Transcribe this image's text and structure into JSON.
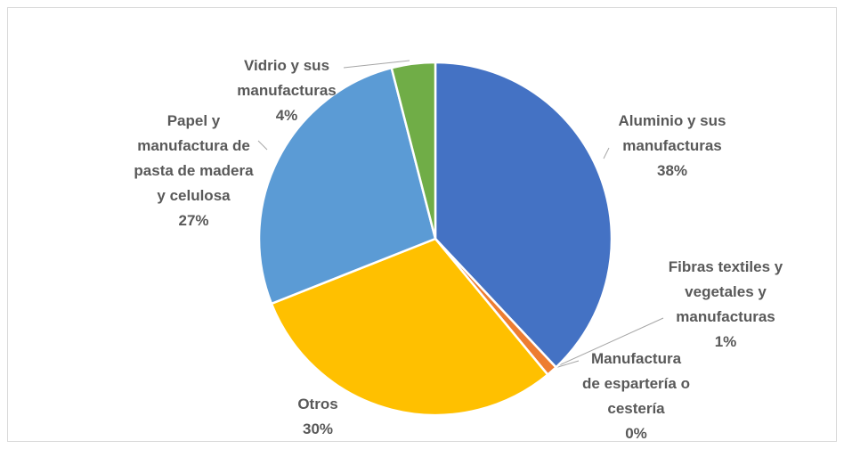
{
  "chart_data": {
    "type": "pie",
    "categories": [
      "Aluminio y sus manufacturas",
      "Fibras textiles y vegetales y manufacturas",
      "Manufactura de espartería o cestería",
      "Otros",
      "Papel y manufactura de pasta de madera y celulosa",
      "Vidrio y sus manufacturas"
    ],
    "values": [
      38,
      1,
      0,
      30,
      27,
      4
    ],
    "value_labels": [
      "38%",
      "1%",
      "0%",
      "30%",
      "27%",
      "4%"
    ],
    "colors": [
      "#4472c4",
      "#ed7d31",
      "#a5a5a5",
      "#ffc000",
      "#5b9bd5",
      "#70ad47"
    ]
  }
}
